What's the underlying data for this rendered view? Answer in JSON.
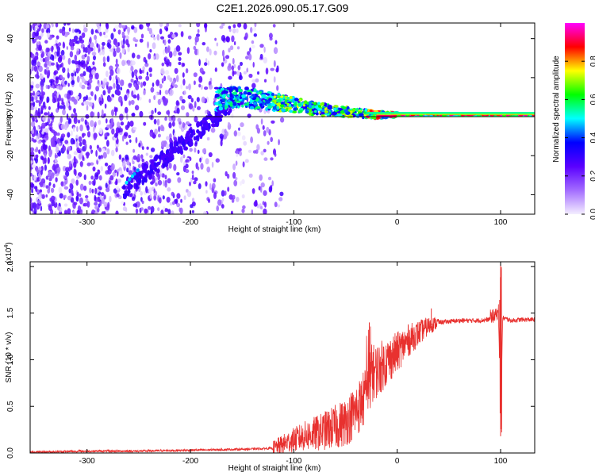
{
  "title": "C2E1.2026.090.05.17.G09",
  "chart_data": [
    {
      "type": "heatmap",
      "name": "spectrogram",
      "xlabel": "Height of straight line (km)",
      "ylabel": "Frequency (Hz)",
      "xlim": [
        -355,
        133
      ],
      "ylim": [
        -50,
        48
      ],
      "xticks": [
        -300,
        -200,
        -100,
        0,
        100
      ],
      "yticks": [
        -40,
        -20,
        0,
        20,
        40
      ],
      "grid": false,
      "colorbar": {
        "label": "Normalized spectral amplitude",
        "range": [
          0,
          1
        ],
        "ticks": [
          0.0,
          0.2,
          0.4,
          0.6,
          0.8
        ],
        "tick_labels": [
          "0.0",
          "0.2",
          "0.4",
          "0.6",
          "0.8"
        ],
        "colors": [
          "#f4eeff",
          "#a36cff",
          "#5a00ff",
          "#0000ff",
          "#00ffff",
          "#00ff00",
          "#ffff00",
          "#ff0000",
          "#ff00ff"
        ]
      },
      "features": {
        "noise_region_x": [
          -355,
          -120
        ],
        "ridge": {
          "x": [
            -175,
            -150,
            -125,
            -100,
            -80,
            -60,
            -40,
            -20,
            0,
            40,
            80,
            133
          ],
          "y": [
            9,
            10,
            8,
            6,
            4,
            3,
            2,
            1,
            1,
            1,
            1,
            1
          ]
        }
      }
    },
    {
      "type": "line",
      "name": "snr",
      "xlabel": "Height of straight line (km)",
      "ylabel": "SNR (10 * v/v)",
      "y_multiplier": "(x10",
      "y_multiplier_exp": "4",
      "y_multiplier_close": ")",
      "xlim": [
        -355,
        133
      ],
      "ylim": [
        0,
        2.05
      ],
      "xticks": [
        -300,
        -200,
        -100,
        0,
        100
      ],
      "yticks": [
        0.0,
        0.5,
        1.0,
        1.5,
        2.0
      ],
      "ytick_labels": [
        "0.0",
        "0.5",
        "1.0",
        "1.5",
        "2.0"
      ],
      "color": "#e8312f",
      "grid": false,
      "series": [
        {
          "x": [
            -355,
            -300,
            -250,
            -200,
            -150,
            -120,
            -105,
            -90,
            -75,
            -60,
            -50,
            -40,
            -30,
            -25,
            -20,
            -10,
            0,
            10,
            20,
            30,
            40,
            50,
            60,
            80,
            95,
            98,
            100,
            102,
            110,
            120,
            133
          ],
          "y": [
            0.01,
            0.02,
            0.02,
            0.03,
            0.04,
            0.05,
            0.12,
            0.18,
            0.22,
            0.28,
            0.33,
            0.45,
            0.62,
            0.85,
            0.88,
            0.98,
            1.08,
            1.2,
            1.28,
            1.36,
            1.4,
            1.41,
            1.42,
            1.42,
            1.44,
            1.5,
            0.18,
            1.45,
            1.42,
            1.43,
            1.43
          ],
          "spikes": [
            {
              "x": -27,
              "y": 1.4
            },
            {
              "x": 100,
              "y": 2.05
            },
            {
              "x": 100,
              "y": 0.18
            },
            {
              "x": 33,
              "y": 1.55
            }
          ]
        }
      ]
    }
  ]
}
